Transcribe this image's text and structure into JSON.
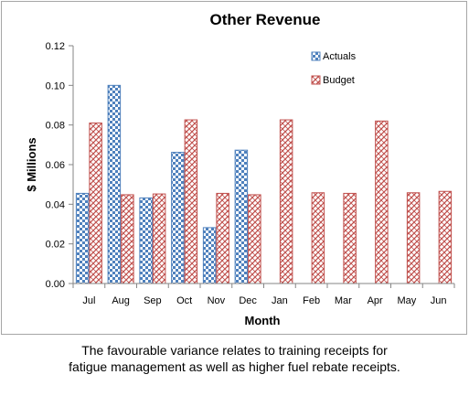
{
  "chart_data": {
    "type": "bar",
    "title": "Other Revenue",
    "xlabel": "Month",
    "ylabel": "$ Millions",
    "categories": [
      "Jul",
      "Aug",
      "Sep",
      "Oct",
      "Nov",
      "Dec",
      "Jan",
      "Feb",
      "Mar",
      "Apr",
      "May",
      "Jun"
    ],
    "series": [
      {
        "name": "Actuals",
        "color": "#4f81bd",
        "pattern": "checkerboard",
        "values": [
          0.0455,
          0.1,
          0.0432,
          0.0662,
          0.0282,
          0.0673,
          null,
          null,
          null,
          null,
          null,
          null
        ]
      },
      {
        "name": "Budget",
        "color": "#c0504d",
        "pattern": "diagonal-weave",
        "values": [
          0.081,
          0.0448,
          0.0452,
          0.0826,
          0.0455,
          0.0448,
          0.0826,
          0.0458,
          0.0455,
          0.082,
          0.0458,
          0.0465
        ]
      }
    ],
    "ylim": [
      0,
      0.12
    ],
    "yticks": [
      "0.00",
      "0.02",
      "0.04",
      "0.06",
      "0.08",
      "0.10",
      "0.12"
    ],
    "grid": false,
    "legend_position": "top-right"
  },
  "caption": {
    "line1": "The favourable variance relates to training receipts for",
    "line2": "fatigue management as well as higher fuel rebate receipts."
  }
}
